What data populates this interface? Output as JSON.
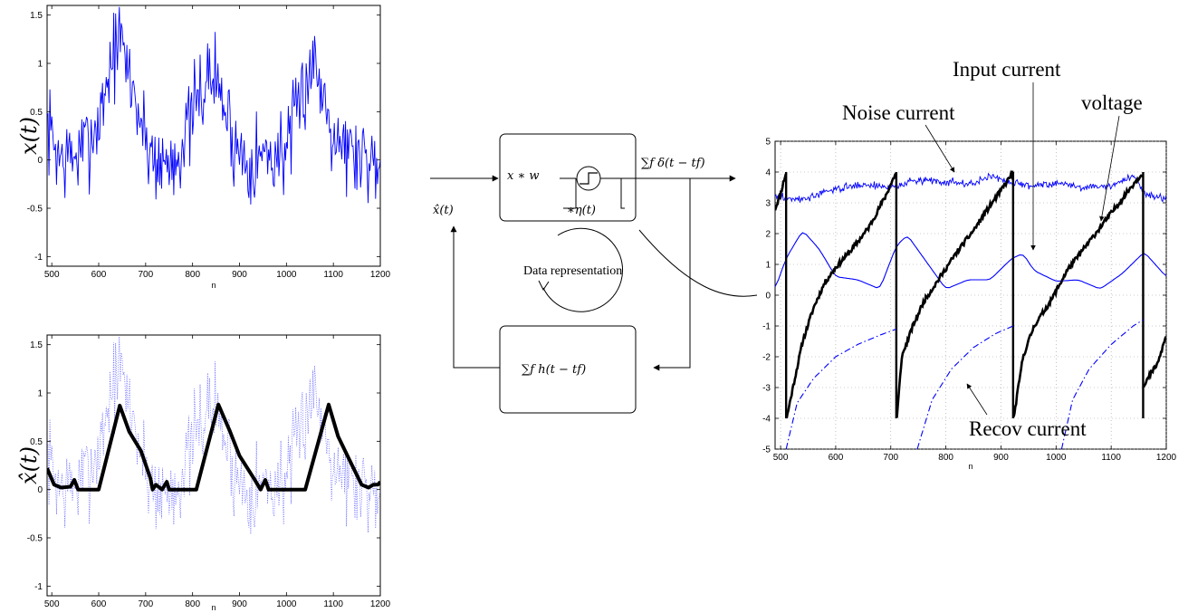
{
  "plots": {
    "top_left": {
      "ylabel": "x(t)",
      "xlabel": "n"
    },
    "bottom_left": {
      "ylabel": "x̂(t)",
      "xlabel": "n"
    },
    "right": {
      "xlabel": "n"
    }
  },
  "diagram": {
    "input_label": "x̂(t)",
    "encoder_conv": "x ∗ w",
    "encoder_kernel": "∗η(t)",
    "spike_train": "∑f δ(t − tf)",
    "decoder_label": "∑f h(t − tf)",
    "cycle_label": "Data representation"
  },
  "annotations": {
    "input_current": "Input current",
    "noise_current": "Noise current",
    "voltage": "voltage",
    "recov_current": "Recov current"
  },
  "colors": {
    "blue": "#0000ff",
    "black": "#000000",
    "dotted_blue": "#5555ff"
  },
  "chart_data": [
    {
      "type": "line",
      "id": "top_left",
      "xlabel": "n",
      "ylabel": "x(t)",
      "xlim": [
        490,
        1200
      ],
      "ylim": [
        -1.1,
        1.6
      ],
      "xticks": [
        500,
        600,
        700,
        800,
        900,
        1000,
        1100,
        1200
      ],
      "yticks": [
        -1,
        -0.5,
        0,
        0.5,
        1,
        1.5
      ],
      "series": [
        {
          "style": "noisy",
          "color": "#0000ff",
          "x": [
            490,
            520,
            560,
            600,
            625,
            645,
            670,
            700,
            730,
            760,
            790,
            820,
            845,
            865,
            890,
            920,
            950,
            980,
            1010,
            1040,
            1055,
            1075,
            1100,
            1130,
            1160,
            1190,
            1200
          ],
          "y": [
            0.35,
            0.0,
            0.05,
            0.4,
            1.0,
            1.25,
            0.8,
            0.2,
            -0.05,
            0.0,
            0.3,
            0.75,
            0.9,
            0.6,
            0.15,
            0.0,
            0.05,
            0.05,
            0.2,
            0.8,
            1.05,
            0.75,
            0.35,
            0.1,
            0.05,
            0.0,
            0.1
          ],
          "noise": 0.35,
          "seed": 7
        }
      ]
    },
    {
      "type": "line",
      "id": "bottom_left",
      "xlabel": "n",
      "ylabel": "x̂(t)",
      "xlim": [
        490,
        1200
      ],
      "ylim": [
        -1.1,
        1.6
      ],
      "xticks": [
        500,
        600,
        700,
        800,
        900,
        1000,
        1100,
        1200
      ],
      "yticks": [
        -1,
        -0.5,
        0,
        0.5,
        1,
        1.5
      ],
      "series": [
        {
          "style": "dotted",
          "color": "#5555ff",
          "x": [
            490,
            520,
            560,
            600,
            625,
            645,
            670,
            700,
            730,
            760,
            790,
            820,
            845,
            865,
            890,
            920,
            950,
            980,
            1010,
            1040,
            1055,
            1075,
            1100,
            1130,
            1160,
            1190,
            1200
          ],
          "y": [
            0.35,
            0.0,
            0.05,
            0.4,
            1.0,
            1.25,
            0.8,
            0.2,
            -0.05,
            0.0,
            0.3,
            0.75,
            0.9,
            0.6,
            0.15,
            0.0,
            0.05,
            0.05,
            0.2,
            0.8,
            1.05,
            0.75,
            0.35,
            0.1,
            0.05,
            0.0,
            0.1
          ],
          "noise": 0.35,
          "seed": 7
        },
        {
          "style": "thick",
          "color": "#000000",
          "x": [
            490,
            505,
            520,
            540,
            548,
            556,
            600,
            645,
            665,
            690,
            710,
            715,
            722,
            735,
            745,
            750,
            760,
            808,
            855,
            880,
            900,
            930,
            945,
            955,
            962,
            970,
            1040,
            1090,
            1110,
            1140,
            1160,
            1175,
            1185,
            1195,
            1200
          ],
          "y": [
            0.22,
            0.05,
            0.02,
            0.03,
            0.1,
            0.0,
            0.0,
            0.87,
            0.6,
            0.4,
            0.12,
            0.0,
            0.05,
            0.0,
            0.08,
            0.0,
            0.0,
            0.0,
            0.88,
            0.6,
            0.35,
            0.12,
            0.0,
            0.1,
            0.0,
            0.0,
            0.0,
            0.88,
            0.55,
            0.25,
            0.05,
            0.02,
            0.05,
            0.05,
            0.08
          ]
        }
      ]
    },
    {
      "type": "line",
      "id": "right",
      "xlabel": "n",
      "xlim": [
        490,
        1200
      ],
      "ylim": [
        -5,
        5
      ],
      "xticks": [
        500,
        600,
        700,
        800,
        900,
        1000,
        1100,
        1200
      ],
      "yticks": [
        -5,
        -4,
        -3,
        -2,
        -1,
        0,
        1,
        2,
        3,
        4,
        5
      ],
      "grid": true,
      "series": [
        {
          "name": "Noise current",
          "style": "noisy-thin",
          "color": "#0000ff",
          "x": [
            490,
            540,
            600,
            650,
            700,
            750,
            800,
            850,
            880,
            900,
            950,
            1000,
            1050,
            1100,
            1140,
            1160,
            1200
          ],
          "y": [
            3.2,
            3.1,
            3.45,
            3.6,
            3.5,
            3.75,
            3.7,
            3.6,
            3.9,
            3.75,
            3.55,
            3.65,
            3.5,
            3.55,
            3.9,
            3.3,
            3.15
          ],
          "noise": 0.12,
          "seed": 3
        },
        {
          "name": "Input current",
          "style": "solid",
          "color": "#0000ff",
          "x": [
            490,
            510,
            540,
            570,
            600,
            640,
            680,
            710,
            730,
            760,
            800,
            840,
            880,
            920,
            940,
            960,
            1000,
            1040,
            1080,
            1120,
            1160,
            1200
          ],
          "y": [
            0.2,
            1.2,
            2.1,
            1.5,
            0.6,
            0.5,
            0.2,
            1.6,
            1.95,
            1.2,
            0.2,
            0.5,
            0.5,
            1.2,
            1.35,
            0.8,
            0.45,
            0.5,
            0.2,
            0.7,
            1.4,
            0.6
          ]
        },
        {
          "name": "voltage",
          "style": "thick-reset",
          "color": "#000000",
          "segments": [
            {
              "x": [
                490,
                500,
                510
              ],
              "y": [
                2.8,
                3.3,
                4.0
              ]
            },
            {
              "x": [
                511,
                520,
                540,
                560,
                580,
                600,
                630,
                660,
                690,
                710
              ],
              "y": [
                -4.0,
                -3.2,
                -1.5,
                -0.4,
                0.4,
                0.9,
                1.5,
                2.2,
                3.2,
                4.0
              ]
            },
            {
              "x": [
                711,
                720,
                740,
                760,
                790,
                820,
                850,
                880,
                900,
                922
              ],
              "y": [
                -4.0,
                -2.0,
                -1.0,
                -0.2,
                0.6,
                1.4,
                2.1,
                2.9,
                3.4,
                4.0
              ]
            },
            {
              "x": [
                923,
                940,
                960,
                990,
                1020,
                1050,
                1080,
                1110,
                1140,
                1158
              ],
              "y": [
                -4.0,
                -2.0,
                -1.0,
                -0.2,
                0.8,
                1.5,
                2.2,
                2.9,
                3.6,
                4.0
              ]
            },
            {
              "x": [
                1159,
                1170,
                1185,
                1200
              ],
              "y": [
                -3.0,
                -2.6,
                -2.2,
                -1.3
              ]
            }
          ],
          "spikes": [
            510,
            710,
            922,
            1158
          ],
          "noise": 0.08,
          "seed": 11
        },
        {
          "name": "Recov current",
          "style": "dashdot",
          "color": "#0000ff",
          "segments": [
            {
              "x": [
                510,
                530,
                560,
                600,
                640,
                680,
                710
              ],
              "y": [
                -5.0,
                -3.5,
                -2.7,
                -2.0,
                -1.6,
                -1.3,
                -1.1
              ]
            },
            {
              "x": [
                748,
                775,
                810,
                850,
                890,
                922
              ],
              "y": [
                -5.0,
                -3.4,
                -2.4,
                -1.7,
                -1.25,
                -1.0
              ]
            },
            {
              "x": [
                1010,
                1030,
                1060,
                1100,
                1140,
                1158
              ],
              "y": [
                -5.0,
                -3.4,
                -2.4,
                -1.6,
                -1.0,
                -0.8
              ]
            }
          ]
        }
      ]
    }
  ]
}
